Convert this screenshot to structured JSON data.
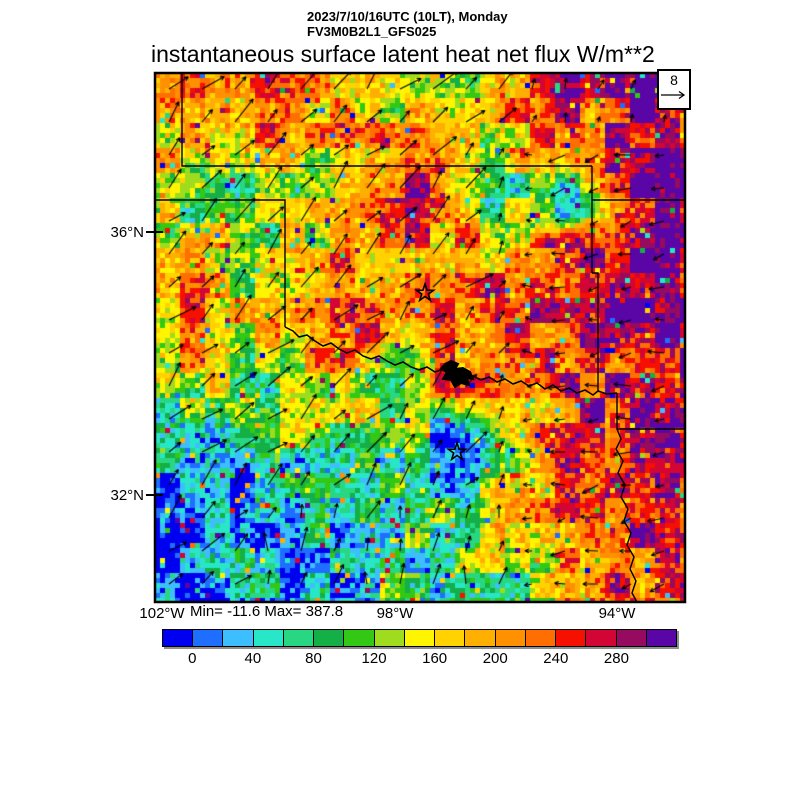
{
  "header": {
    "line1": "2023/7/10/16UTC (10LT), Monday",
    "line2": "FV3M0B2L1_GFS025"
  },
  "title": "instantaneous surface latent heat net flux W/m**2",
  "stats": "Min= -11.6 Max= 387.8",
  "reference_arrow": {
    "label": "8"
  },
  "axes": {
    "lat_ticks": [
      {
        "label": "36°N"
      },
      {
        "label": "32°N"
      }
    ],
    "lon_ticks": [
      {
        "label": "102°W"
      },
      {
        "label": "98°W"
      },
      {
        "label": "94°W"
      }
    ]
  },
  "chart_data": {
    "type": "heatmap",
    "title": "instantaneous surface latent heat net flux W/m**2",
    "subtitle": [
      "2023/7/10/16UTC (10LT), Monday",
      "FV3M0B2L1_GFS025"
    ],
    "variable": "instantaneous surface latent heat net flux",
    "units": "W/m**2",
    "min": -11.6,
    "max": 387.8,
    "x_axis": {
      "ticks": [
        "102°W",
        "98°W",
        "94°W"
      ]
    },
    "y_axis": {
      "ticks": [
        "36°N",
        "32°N"
      ]
    },
    "region": "Southern Great Plains (Oklahoma / north Texas), approx 102W-93W, 30.4N-38.4N",
    "colorbar": {
      "labels": [
        "0",
        "40",
        "80",
        "120",
        "160",
        "200",
        "240",
        "280"
      ],
      "bin_edges": [
        -20,
        0,
        20,
        40,
        60,
        80,
        100,
        120,
        140,
        160,
        180,
        200,
        220,
        240,
        260,
        280,
        300,
        320
      ],
      "colors": [
        "#0000F0",
        "#1E6EFF",
        "#3CBEFF",
        "#28E6C8",
        "#28D782",
        "#14AF46",
        "#32C814",
        "#A0DC1E",
        "#FFF500",
        "#FFD200",
        "#FFAF00",
        "#FF9100",
        "#FF6E00",
        "#F51000",
        "#D20534",
        "#960A5F",
        "#5A05A5"
      ]
    },
    "wind": {
      "reference_label": "8",
      "pattern": "NE-pointing vectors over the west and top, backing to W/SW-pointing over the east third, N-pointing along the bottom center"
    },
    "field_zones": [
      [
        0.05,
        0.05,
        210
      ],
      [
        0.22,
        0.05,
        245
      ],
      [
        0.38,
        0.08,
        190
      ],
      [
        0.5,
        0.1,
        170
      ],
      [
        0.57,
        0.05,
        120
      ],
      [
        0.7,
        0.1,
        200
      ],
      [
        0.8,
        0.07,
        255
      ],
      [
        0.93,
        0.06,
        285
      ],
      [
        0.46,
        0.22,
        258
      ],
      [
        0.33,
        0.17,
        150
      ],
      [
        0.1,
        0.22,
        110
      ],
      [
        0.05,
        0.13,
        190
      ],
      [
        0.63,
        0.2,
        90
      ],
      [
        0.77,
        0.25,
        80
      ],
      [
        0.86,
        0.17,
        268
      ],
      [
        0.95,
        0.25,
        300
      ],
      [
        0.2,
        0.35,
        140
      ],
      [
        0.05,
        0.42,
        205
      ],
      [
        0.35,
        0.45,
        242
      ],
      [
        0.55,
        0.35,
        205
      ],
      [
        0.7,
        0.45,
        252
      ],
      [
        0.915,
        0.4,
        312
      ],
      [
        0.8,
        0.33,
        290
      ],
      [
        0.22,
        0.62,
        120
      ],
      [
        0.47,
        0.6,
        130
      ],
      [
        0.57,
        0.56,
        240
      ],
      [
        0.68,
        0.6,
        185
      ],
      [
        0.82,
        0.55,
        272
      ],
      [
        0.95,
        0.62,
        292
      ],
      [
        0.12,
        0.8,
        15
      ],
      [
        0.08,
        0.95,
        5
      ],
      [
        0.3,
        0.93,
        30
      ],
      [
        0.35,
        0.75,
        70
      ],
      [
        0.57,
        0.72,
        12
      ],
      [
        0.52,
        0.88,
        90
      ],
      [
        0.63,
        0.93,
        110
      ],
      [
        0.45,
        0.98,
        60
      ],
      [
        0.8,
        0.8,
        245
      ],
      [
        0.93,
        0.9,
        255
      ],
      [
        0.7,
        0.84,
        200
      ]
    ],
    "markers": {
      "stars": [
        {
          "x_frac": 0.509,
          "y_frac": 0.416
        },
        {
          "x_frac": 0.57,
          "y_frac": 0.716
        }
      ],
      "lake": {
        "x_frac": 0.572,
        "y_frac": 0.569
      }
    }
  }
}
